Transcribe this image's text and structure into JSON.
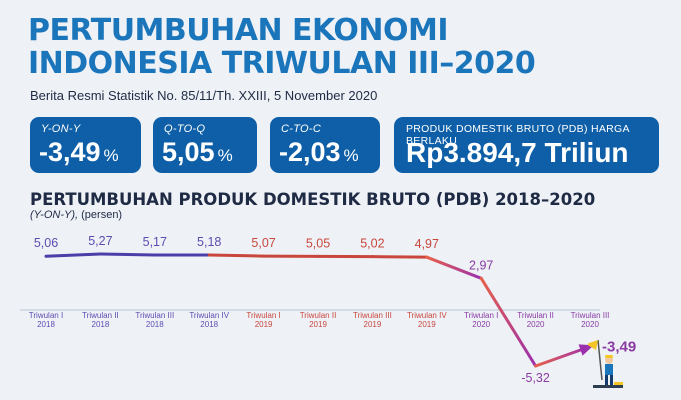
{
  "header": {
    "title_line1": "PERTUMBUHAN EKONOMI",
    "title_line2": "INDONESIA TRIWULAN III–2020",
    "subtitle": "Berita Resmi Statistik No. 85/11/Th. XXIII, 5 November 2020"
  },
  "cards": [
    {
      "label": "Y-ON-Y",
      "value": "-3,49",
      "unit": "%"
    },
    {
      "label": "Q-TO-Q",
      "value": "5,05",
      "unit": "%"
    },
    {
      "label": "C-TO-C",
      "value": "-2,03",
      "unit": "%"
    },
    {
      "label": "PRODUK DOMESTIK BRUTO (PDB) HARGA BERLAKU",
      "value": "Rp3.894,7 Triliun",
      "unit": ""
    }
  ],
  "colors": {
    "title_blue": "#1b75bb",
    "card_blue": "#0e5fa8",
    "line_2018": "#4a3ea8",
    "line_2019": "#c9463d",
    "line_2020_start": "#e8604a",
    "line_2020_end": "#9b2fae",
    "label_2018": "#5e4bb0",
    "label_2019": "#c9463d",
    "label_2020": "#8a3aa3"
  },
  "chart_data": {
    "type": "line",
    "title": "PERTUMBUHAN PRODUK DOMESTIK BRUTO (PDB) 2018–2020",
    "ylabel_italic": "(Y-ON-Y),",
    "ylabel_rest": " (persen)",
    "categories": [
      [
        "Triwulan I",
        "2018"
      ],
      [
        "Triwulan II",
        "2018"
      ],
      [
        "Triwulan III",
        "2018"
      ],
      [
        "Triwulan IV",
        "2018"
      ],
      [
        "Triwulan I",
        "2019"
      ],
      [
        "Triwulan II",
        "2019"
      ],
      [
        "Triwulan III",
        "2019"
      ],
      [
        "Triwulan IV",
        "2019"
      ],
      [
        "Triwulan I",
        "2020"
      ],
      [
        "Triwulan II",
        "2020"
      ],
      [
        "Triwulan III",
        "2020"
      ]
    ],
    "values": [
      5.06,
      5.27,
      5.17,
      5.18,
      5.07,
      5.05,
      5.02,
      4.97,
      2.97,
      -5.32,
      -3.49
    ],
    "value_labels": [
      "5,06",
      "5,27",
      "5,17",
      "5,18",
      "5,07",
      "5,05",
      "5,02",
      "4,97",
      "2,97",
      "-5,32",
      "-3,49"
    ],
    "ylim": [
      -6,
      6
    ],
    "grid": false,
    "legend": "none"
  }
}
